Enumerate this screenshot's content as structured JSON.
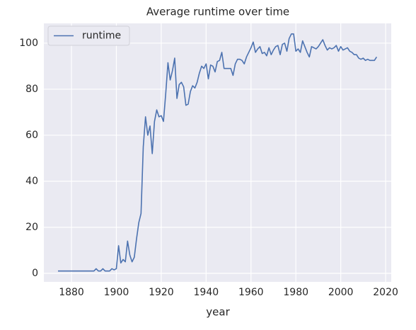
{
  "chart_data": {
    "type": "line",
    "title": "Average runtime over time",
    "xlabel": "year",
    "x": [
      1874,
      1875,
      1876,
      1877,
      1878,
      1879,
      1880,
      1881,
      1882,
      1883,
      1884,
      1885,
      1886,
      1887,
      1888,
      1889,
      1890,
      1891,
      1892,
      1893,
      1894,
      1895,
      1896,
      1897,
      1898,
      1899,
      1900,
      1901,
      1902,
      1903,
      1904,
      1905,
      1906,
      1907,
      1908,
      1909,
      1910,
      1911,
      1912,
      1913,
      1914,
      1915,
      1916,
      1917,
      1918,
      1919,
      1920,
      1921,
      1922,
      1923,
      1924,
      1925,
      1926,
      1927,
      1928,
      1929,
      1930,
      1931,
      1932,
      1933,
      1934,
      1935,
      1936,
      1937,
      1938,
      1939,
      1940,
      1941,
      1942,
      1943,
      1944,
      1945,
      1946,
      1947,
      1948,
      1949,
      1950,
      1951,
      1952,
      1953,
      1954,
      1955,
      1956,
      1957,
      1958,
      1959,
      1960,
      1961,
      1962,
      1963,
      1964,
      1965,
      1966,
      1967,
      1968,
      1969,
      1970,
      1971,
      1972,
      1973,
      1974,
      1975,
      1976,
      1977,
      1978,
      1979,
      1980,
      1981,
      1982,
      1983,
      1984,
      1985,
      1986,
      1987,
      1988,
      1989,
      1990,
      1991,
      1992,
      1993,
      1994,
      1995,
      1996,
      1997,
      1998,
      1999,
      2000,
      2001,
      2002,
      2003,
      2004,
      2005,
      2006,
      2007,
      2008,
      2009,
      2010,
      2011,
      2012,
      2013,
      2014,
      2015,
      2016
    ],
    "series": [
      {
        "name": "runtime",
        "color": "#4c72b0",
        "values": [
          1,
          1,
          1,
          1,
          1,
          1,
          1,
          1,
          1,
          1,
          1,
          1,
          1,
          1,
          1,
          1,
          1,
          2,
          1,
          1,
          2,
          1,
          1,
          1,
          2,
          1.5,
          2,
          12,
          4.5,
          6,
          5,
          14,
          8,
          5,
          7,
          15,
          22,
          26,
          55,
          68,
          60,
          64,
          52,
          66,
          71,
          68,
          68.5,
          66,
          78,
          91.5,
          84,
          88,
          93.5,
          76,
          82,
          83,
          81,
          73,
          73.5,
          79,
          81.5,
          80.5,
          83,
          87,
          90,
          89,
          91,
          84.5,
          90.5,
          90,
          87.5,
          92,
          92.5,
          96,
          89,
          89,
          89,
          89,
          86,
          91,
          93,
          93,
          92.5,
          91,
          94,
          96,
          98,
          100.5,
          96,
          97.5,
          98.5,
          95.5,
          96,
          94.5,
          98,
          95,
          97,
          98.5,
          99,
          95,
          99.5,
          100,
          96.5,
          102,
          104,
          104,
          96.5,
          97.5,
          96,
          101,
          98.5,
          96,
          94,
          98.5,
          98,
          97.5,
          98.5,
          100,
          101.5,
          99,
          97,
          98,
          97.5,
          98,
          99,
          96.5,
          98.5,
          97,
          97.5,
          98,
          96.5,
          96,
          95,
          95,
          93.5,
          93,
          93.5,
          92.5,
          93,
          92.5,
          92.5,
          92.5,
          94
        ]
      }
    ],
    "xlim": [
      1867.7,
      2022.5
    ],
    "xticks": [
      1880,
      1900,
      1920,
      1940,
      1960,
      1980,
      2000,
      2020
    ],
    "ylim": [
      -3.7,
      108.6
    ],
    "yticks": [
      0,
      20,
      40,
      60,
      80,
      100
    ],
    "grid": true,
    "legend": "upper left"
  }
}
